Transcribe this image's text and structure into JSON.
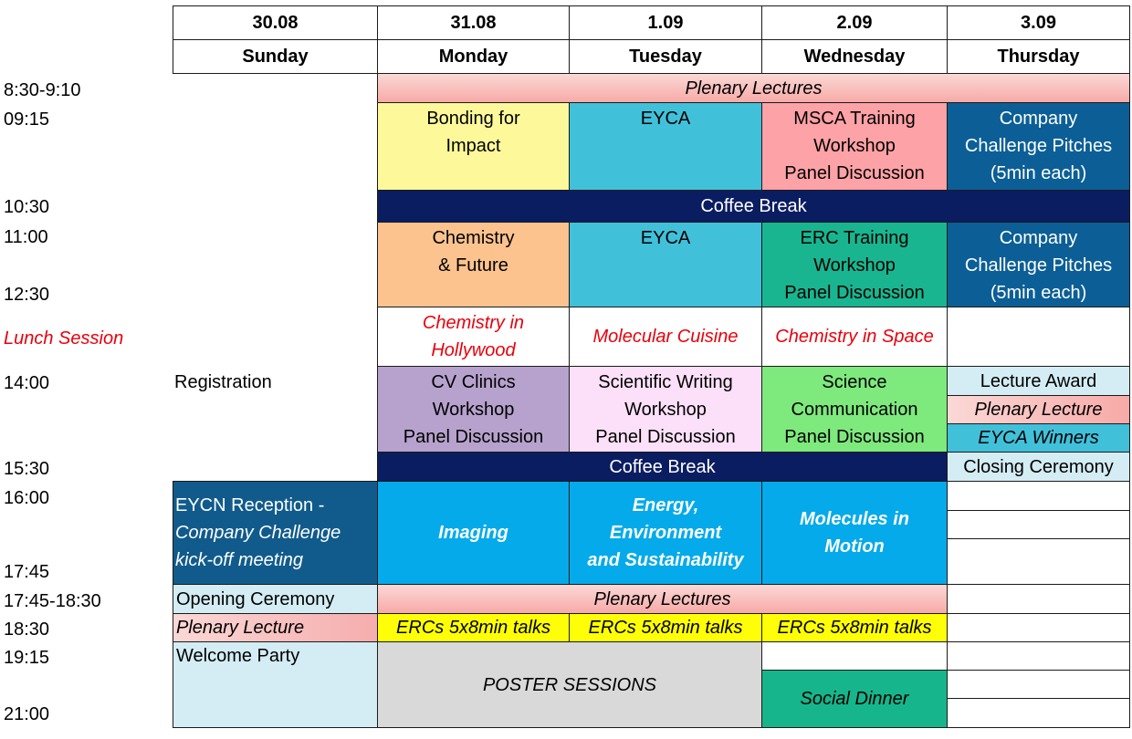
{
  "days": [
    {
      "date": "30.08",
      "weekday": "Sunday"
    },
    {
      "date": "31.08",
      "weekday": "Monday"
    },
    {
      "date": "1.09",
      "weekday": "Tuesday"
    },
    {
      "date": "2.09",
      "weekday": "Wednesday"
    },
    {
      "date": "3.09",
      "weekday": "Thursday"
    }
  ],
  "times": {
    "t0830": "8:30-9:10",
    "t0915": "09:15",
    "t1030": "10:30",
    "t1100": "11:00",
    "t1230": "12:30",
    "lunch": "Lunch Session",
    "t1400": "14:00",
    "t1530": "15:30",
    "t1600": "16:00",
    "t1745": "17:45",
    "t1745b": "17:45-18:30",
    "t1830": "18:30",
    "t1915": "19:15",
    "t2100": "21:00"
  },
  "sessions": {
    "plenary_morning": "Plenary Lectures",
    "bonding": "Bonding for\nImpact",
    "eyca1": "EYCA",
    "msca": "MSCA Training\nWorkshop\nPanel Discussion",
    "company1": "Company\nChallenge Pitches\n(5min each)",
    "coffee1": "Coffee Break",
    "chem_future": "Chemistry\n& Future",
    "eyca2": "EYCA",
    "erc_training": "ERC Training\nWorkshop\nPanel Discussion",
    "company2": "Company\nChallenge Pitches\n(5min each)",
    "lunch_mon": "Chemistry in\nHollywood",
    "lunch_tue": "Molecular Cuisine",
    "lunch_wed": "Chemistry in Space",
    "registration": "Registration",
    "cv_clinics": "CV Clinics\nWorkshop\nPanel Discussion",
    "sci_writing": "Scientific Writing\nWorkshop\nPanel Discussion",
    "sci_comm": "Science\nCommunication\nPanel Discussion",
    "lecture_award": "Lecture Award",
    "plenary_thu": "Plenary Lecture",
    "eyca_winners": "EYCA Winners",
    "coffee2": "Coffee Break",
    "closing": "Closing Ceremony",
    "eycn_reception": "EYCN Reception -",
    "eycn_kickoff": "Company Challenge\nkick-off meeting",
    "imaging": "Imaging",
    "energy": "Energy,\nEnvironment\nand Sustainability",
    "molecules": "Molecules in\nMotion",
    "opening": "Opening Ceremony",
    "plenary_evening": "Plenary Lectures",
    "plenary_sun": "Plenary Lecture",
    "erc_mon": "ERCs 5x8min talks",
    "erc_tue": "ERCs 5x8min talks",
    "erc_wed": "ERCs 5x8min talks",
    "welcome": "Welcome Party",
    "poster": "POSTER SESSIONS",
    "social": "Social Dinner"
  },
  "colors": {
    "plenary": "#f6b5b1",
    "bonding": "#fdf99a",
    "eyca": "#41c0da",
    "msca": "#fda2a6",
    "company": "#0c5f96",
    "coffee": "#0b1d61",
    "chem_future": "#fcc38f",
    "erc_training": "#19b590",
    "cv": "#b7a2cd",
    "writing": "#fce0f9",
    "comm": "#7ee97d",
    "lightblue": "#d4edf4",
    "session_blue": "#05aaea",
    "eycn": "#115b8c",
    "erc_talks": "#fefe06",
    "poster": "#d9d9d9",
    "social": "#17b58b",
    "red_text": "#e8000b"
  }
}
